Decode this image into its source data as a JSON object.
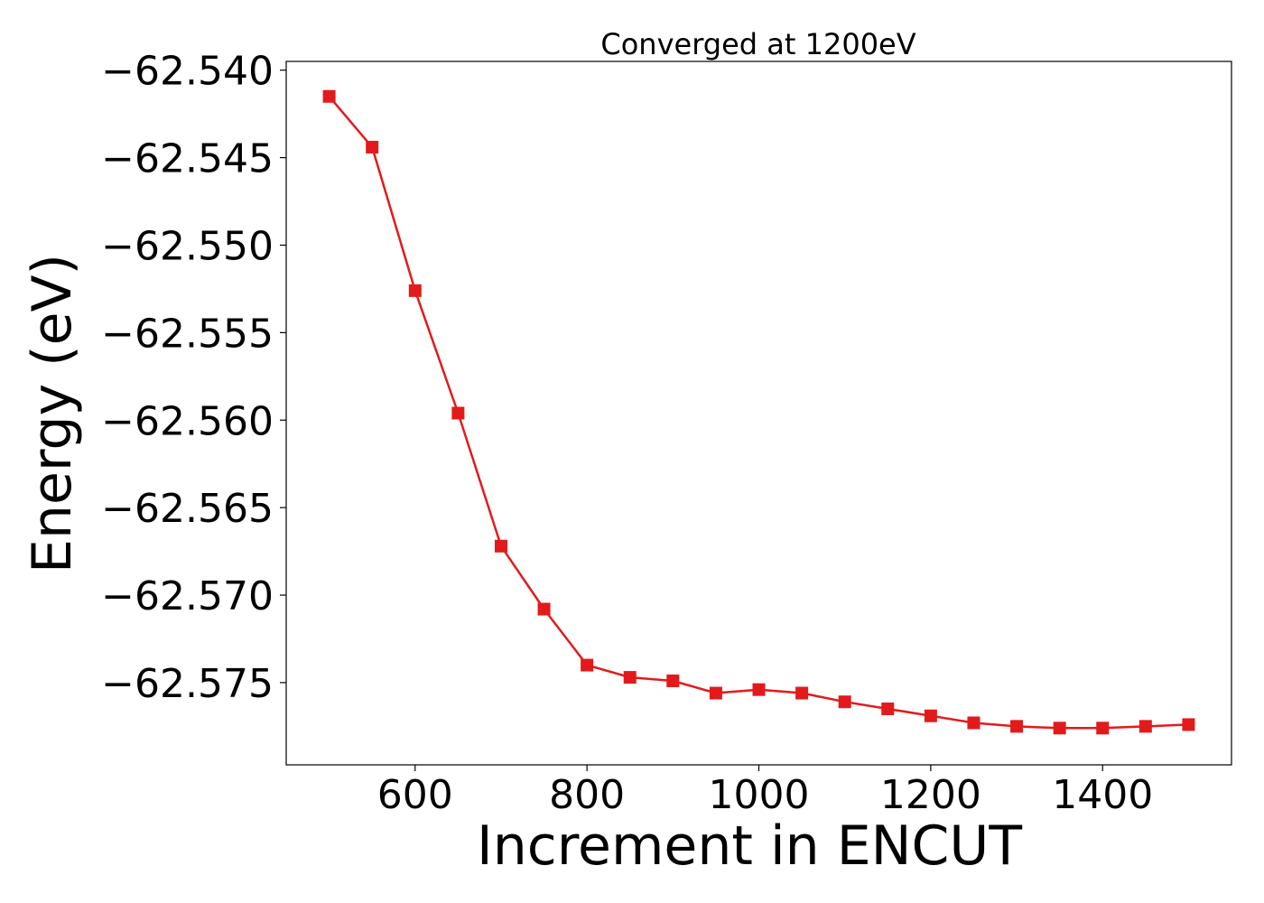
{
  "chart_data": {
    "type": "line",
    "title": "Converged at 1200eV",
    "xlabel": "Increment in ENCUT",
    "ylabel": "Energy (eV)",
    "xlim": [
      450,
      1550
    ],
    "ylim": [
      -62.5797,
      -62.5395
    ],
    "x_ticks": [
      600,
      800,
      1000,
      1200,
      1400
    ],
    "x_tick_labels": [
      "600",
      "800",
      "1000",
      "1200",
      "1400"
    ],
    "y_ticks": [
      -62.54,
      -62.545,
      -62.55,
      -62.555,
      -62.56,
      -62.565,
      -62.57,
      -62.575
    ],
    "y_tick_labels": [
      "−62.540",
      "−62.545",
      "−62.550",
      "−62.555",
      "−62.560",
      "−62.565",
      "−62.570",
      "−62.575"
    ],
    "grid": false,
    "series": [
      {
        "color": "#e31a1c",
        "marker": "square",
        "x": [
          500,
          550,
          600,
          650,
          700,
          750,
          800,
          850,
          900,
          950,
          1000,
          1050,
          1100,
          1150,
          1200,
          1250,
          1300,
          1350,
          1400,
          1450,
          1500
        ],
        "y": [
          -62.5415,
          -62.5444,
          -62.5526,
          -62.5596,
          -62.5672,
          -62.5708,
          -62.574,
          -62.5747,
          -62.5749,
          -62.5756,
          -62.5754,
          -62.5756,
          -62.5761,
          -62.5765,
          -62.5769,
          -62.5773,
          -62.5775,
          -62.5776,
          -62.5776,
          -62.5775,
          -62.5774
        ]
      }
    ]
  }
}
